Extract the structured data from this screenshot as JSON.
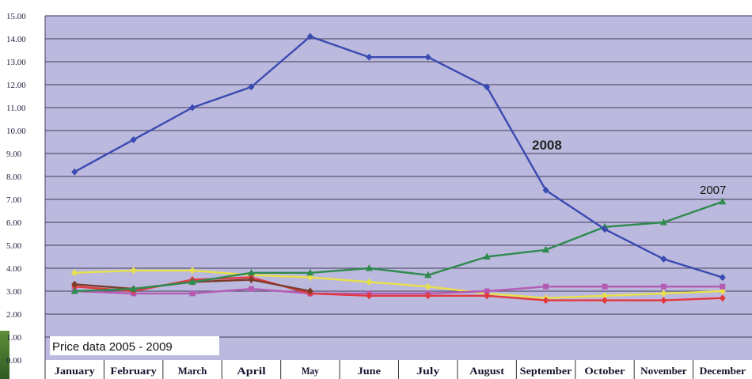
{
  "chart_data": {
    "type": "line",
    "title": "",
    "xlabel": "",
    "ylabel": "",
    "caption": "Price data 2005 - 2009",
    "categories": [
      "January",
      "February",
      "March",
      "April",
      "May",
      "June",
      "July",
      "August",
      "September",
      "October",
      "November",
      "December"
    ],
    "ylim": [
      0,
      15
    ],
    "y_ticks": [
      "0.00",
      "1.00",
      "2.00",
      "3.00",
      "4.00",
      "5.00",
      "6.00",
      "7.00",
      "8.00",
      "9.00",
      "10.00",
      "11.00",
      "12.00",
      "13.00",
      "14.00",
      "15.00"
    ],
    "grid": true,
    "legend": "none",
    "plot_background": "#bcb9de",
    "series": [
      {
        "name": "",
        "color": "#e8e04a",
        "marker": "diamond",
        "values": [
          3.8,
          3.9,
          3.9,
          3.7,
          3.6,
          3.4,
          3.2,
          2.9,
          2.7,
          2.8,
          2.9,
          3.0
        ]
      },
      {
        "name": "",
        "color": "#b45bb4",
        "marker": "square",
        "values": [
          3.0,
          2.9,
          2.9,
          3.1,
          2.9,
          2.9,
          2.9,
          3.0,
          3.2,
          3.2,
          3.2,
          3.2
        ]
      },
      {
        "name": "",
        "color": "#e2383f",
        "marker": "diamond",
        "values": [
          3.2,
          3.0,
          3.5,
          3.6,
          2.9,
          2.8,
          2.8,
          2.8,
          2.6,
          2.6,
          2.6,
          2.7
        ]
      },
      {
        "name": "",
        "color": "#7a3b2a",
        "marker": "diamond",
        "values": [
          3.3,
          3.1,
          3.4,
          3.5,
          3.0,
          null,
          null,
          null,
          null,
          null,
          null,
          null
        ]
      },
      {
        "name": "2007",
        "color": "#2f8a4e",
        "marker": "triangle",
        "values": [
          3.0,
          3.1,
          3.4,
          3.8,
          3.8,
          4.0,
          3.7,
          4.5,
          4.8,
          5.8,
          6.0,
          6.9
        ]
      },
      {
        "name": "2008",
        "color": "#3a4ab0",
        "marker": "diamond",
        "values": [
          8.2,
          9.6,
          11.0,
          11.9,
          14.1,
          13.2,
          13.2,
          11.9,
          7.4,
          5.7,
          4.4,
          3.6
        ]
      }
    ]
  }
}
